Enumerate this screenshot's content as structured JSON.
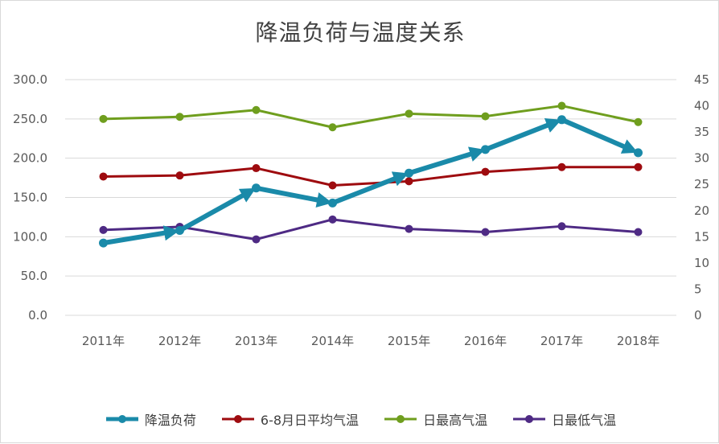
{
  "chart_data": {
    "type": "line",
    "title": "降温负荷与温度关系",
    "categories": [
      "2011年",
      "2012年",
      "2013年",
      "2014年",
      "2015年",
      "2016年",
      "2017年",
      "2018年"
    ],
    "y_left": {
      "lim": [
        0,
        300
      ],
      "ticks": [
        "0.0",
        "50.0",
        "100.0",
        "150.0",
        "200.0",
        "250.0",
        "300.0"
      ]
    },
    "y_right": {
      "lim": [
        0,
        45
      ],
      "ticks": [
        "0",
        "5",
        "10",
        "15",
        "20",
        "25",
        "30",
        "35",
        "40",
        "45"
      ]
    },
    "grid": true,
    "legend_position": "bottom",
    "series": [
      {
        "name": "降温负荷",
        "axis": "left",
        "color": "#1a8aa9",
        "arrows": true,
        "values": [
          92,
          108,
          162,
          143,
          181,
          211,
          249,
          207
        ]
      },
      {
        "name": "6-8月日平均气温",
        "axis": "right",
        "color": "#9e0b0f",
        "values": [
          26.5,
          26.7,
          28.1,
          24.8,
          25.6,
          27.4,
          28.3,
          28.3
        ]
      },
      {
        "name": "日最高气温",
        "axis": "right",
        "color": "#6f9e1e",
        "values": [
          37.5,
          37.9,
          39.2,
          35.9,
          38.5,
          38.0,
          40.0,
          36.9
        ]
      },
      {
        "name": "日最低气温",
        "axis": "right",
        "color": "#4e2a84",
        "values": [
          16.3,
          16.9,
          14.5,
          18.3,
          16.5,
          15.9,
          17.0,
          15.9
        ]
      }
    ]
  }
}
